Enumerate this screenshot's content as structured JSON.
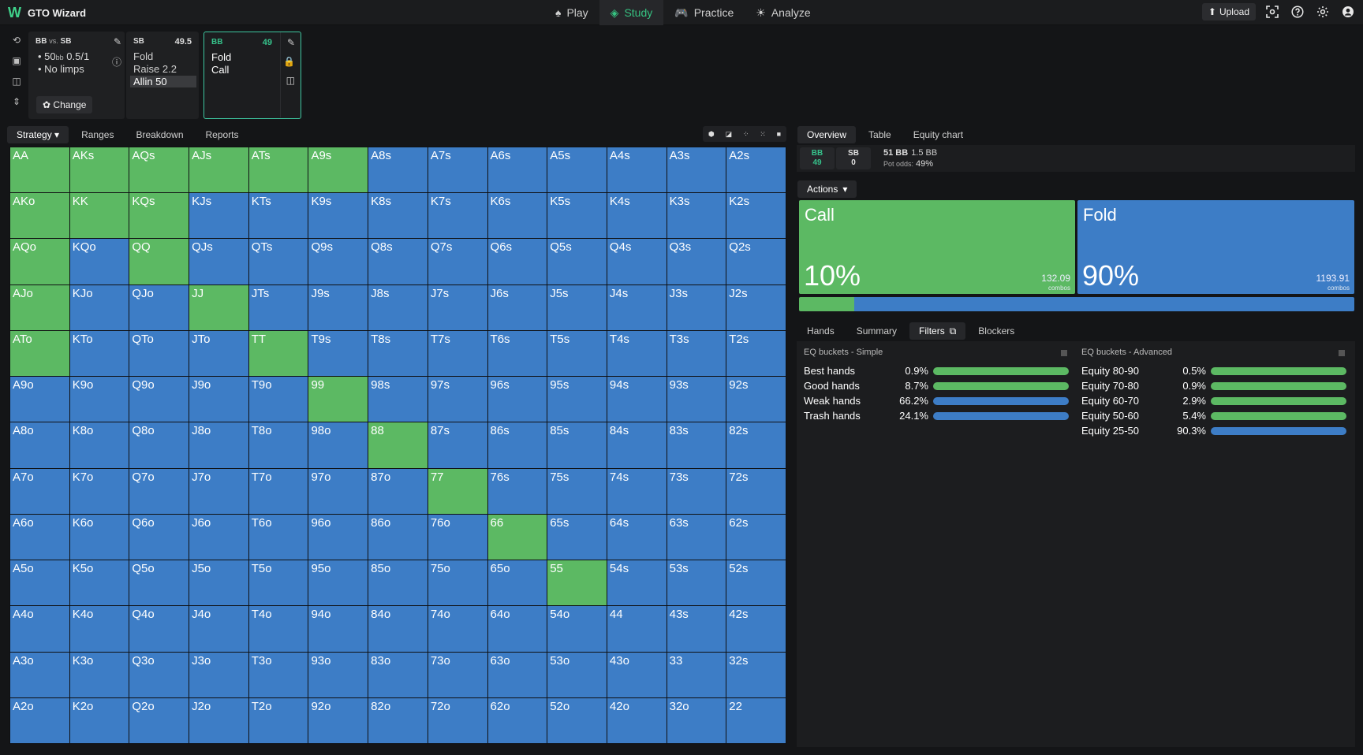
{
  "app": {
    "logo": "W",
    "title": "GTO Wizard"
  },
  "nav": [
    {
      "icon": "♠",
      "label": "Play"
    },
    {
      "icon": "◈",
      "label": "Study"
    },
    {
      "icon": "🎮",
      "label": "Practice"
    },
    {
      "icon": "☀",
      "label": "Analyze"
    }
  ],
  "toolbar": {
    "upload": "Upload",
    "upload_icon": "⬆"
  },
  "spot": {
    "header": "BB",
    "vs": "vs.",
    "header2": "SB",
    "stack_line": "50",
    "stack_unit": "bb",
    "blinds": "0.5/1",
    "limps": "No limps",
    "change_button": "Change",
    "change_icon": "✿"
  },
  "sb_node": {
    "position": "SB",
    "stack": "49.5",
    "actions": [
      "Fold",
      "Raise 2.2",
      "Allin 50"
    ]
  },
  "bb_node": {
    "position": "BB",
    "stack": "49",
    "actions": [
      "Fold",
      "Call"
    ]
  },
  "left_tabs": {
    "strategy": "Strategy",
    "strategy_caret": "▾",
    "ranges": "Ranges",
    "breakdown": "Breakdown",
    "reports": "Reports"
  },
  "grid": {
    "rows": [
      [
        "AA",
        "AKs",
        "AQs",
        "AJs",
        "ATs",
        "A9s",
        "A8s",
        "A7s",
        "A6s",
        "A5s",
        "A4s",
        "A3s",
        "A2s"
      ],
      [
        "AKo",
        "KK",
        "KQs",
        "KJs",
        "KTs",
        "K9s",
        "K8s",
        "K7s",
        "K6s",
        "K5s",
        "K4s",
        "K3s",
        "K2s"
      ],
      [
        "AQo",
        "KQo",
        "QQ",
        "QJs",
        "QTs",
        "Q9s",
        "Q8s",
        "Q7s",
        "Q6s",
        "Q5s",
        "Q4s",
        "Q3s",
        "Q2s"
      ],
      [
        "AJo",
        "KJo",
        "QJo",
        "JJ",
        "JTs",
        "J9s",
        "J8s",
        "J7s",
        "J6s",
        "J5s",
        "J4s",
        "J3s",
        "J2s"
      ],
      [
        "ATo",
        "KTo",
        "QTo",
        "JTo",
        "TT",
        "T9s",
        "T8s",
        "T7s",
        "T6s",
        "T5s",
        "T4s",
        "T3s",
        "T2s"
      ],
      [
        "A9o",
        "K9o",
        "Q9o",
        "J9o",
        "T9o",
        "99",
        "98s",
        "97s",
        "96s",
        "95s",
        "94s",
        "93s",
        "92s"
      ],
      [
        "A8o",
        "K8o",
        "Q8o",
        "J8o",
        "T8o",
        "98o",
        "88",
        "87s",
        "86s",
        "85s",
        "84s",
        "83s",
        "82s"
      ],
      [
        "A7o",
        "K7o",
        "Q7o",
        "J7o",
        "T7o",
        "97o",
        "87o",
        "77",
        "76s",
        "75s",
        "74s",
        "73s",
        "72s"
      ],
      [
        "A6o",
        "K6o",
        "Q6o",
        "J6o",
        "T6o",
        "96o",
        "86o",
        "76o",
        "66",
        "65s",
        "64s",
        "63s",
        "62s"
      ],
      [
        "A5o",
        "K5o",
        "Q5o",
        "J5o",
        "T5o",
        "95o",
        "85o",
        "75o",
        "65o",
        "55",
        "54s",
        "53s",
        "52s"
      ],
      [
        "A4o",
        "K4o",
        "Q4o",
        "J4o",
        "T4o",
        "94o",
        "84o",
        "74o",
        "64o",
        "54o",
        "44",
        "43s",
        "42s"
      ],
      [
        "A3o",
        "K3o",
        "Q3o",
        "J3o",
        "T3o",
        "93o",
        "83o",
        "73o",
        "63o",
        "53o",
        "43o",
        "33",
        "32s"
      ],
      [
        "A2o",
        "K2o",
        "Q2o",
        "J2o",
        "T2o",
        "92o",
        "82o",
        "72o",
        "62o",
        "52o",
        "42o",
        "32o",
        "22"
      ]
    ],
    "call_hands": [
      "AA",
      "AKs",
      "AQs",
      "AJs",
      "ATs",
      "A9s",
      "AKo",
      "KK",
      "KQs",
      "AQo",
      "QQ",
      "AJo",
      "JJ",
      "ATo",
      "TT",
      "99",
      "88",
      "77",
      "66",
      "55"
    ],
    "colors": {
      "call": "#5cb963",
      "fold": "#3d7dc6"
    }
  },
  "right_tabs": {
    "overview": "Overview",
    "table": "Table",
    "equity_chart": "Equity chart"
  },
  "players": {
    "bb_label": "BB",
    "bb_stack": "49",
    "sb_label": "SB",
    "sb_stack": "0"
  },
  "pot": {
    "total": "51 BB",
    "blind": "1.5 BB",
    "odds_label": "Pot odds:",
    "odds": "49%"
  },
  "actions_dropdown": "Actions",
  "actions": [
    {
      "name": "Call",
      "pct": "10%",
      "combos": "132.09",
      "combos_label": "combos",
      "fraction": 0.1,
      "color": "#5cb963"
    },
    {
      "name": "Fold",
      "pct": "90%",
      "combos": "1193.91",
      "combos_label": "combos",
      "fraction": 0.9,
      "color": "#3d7dc6"
    }
  ],
  "bottom_tabs": {
    "hands": "Hands",
    "summary": "Summary",
    "filters": "Filters",
    "blockers": "Blockers"
  },
  "eq_simple": {
    "title": "EQ buckets - Simple",
    "rows": [
      {
        "label": "Best hands",
        "value": "0.9%",
        "color": "green"
      },
      {
        "label": "Good hands",
        "value": "8.7%",
        "color": "green"
      },
      {
        "label": "Weak hands",
        "value": "66.2%",
        "color": "blue"
      },
      {
        "label": "Trash hands",
        "value": "24.1%",
        "color": "blue"
      }
    ]
  },
  "eq_advanced": {
    "title": "EQ buckets - Advanced",
    "rows": [
      {
        "label": "Equity 80-90",
        "value": "0.5%",
        "color": "green"
      },
      {
        "label": "Equity 70-80",
        "value": "0.9%",
        "color": "green"
      },
      {
        "label": "Equity 60-70",
        "value": "2.9%",
        "color": "green"
      },
      {
        "label": "Equity 50-60",
        "value": "5.4%",
        "color": "green"
      },
      {
        "label": "Equity 25-50",
        "value": "90.3%",
        "color": "blue"
      }
    ]
  }
}
